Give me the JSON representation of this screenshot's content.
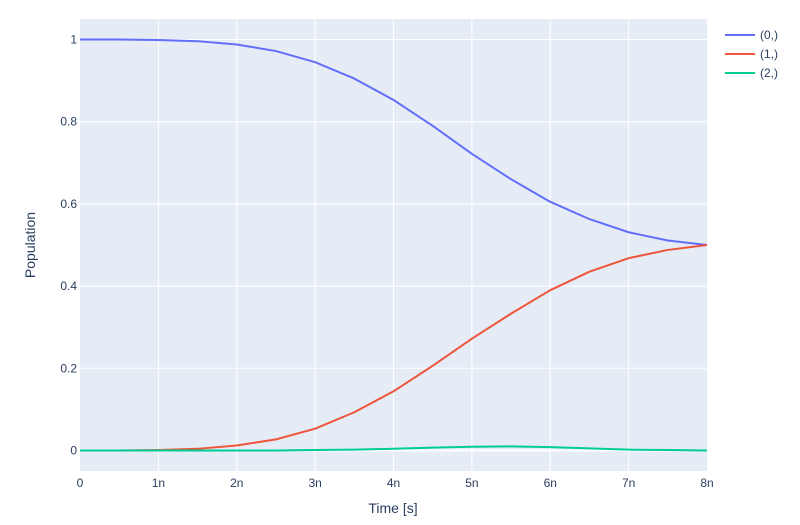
{
  "chart_data": {
    "type": "line",
    "xlabel": "Time [s]",
    "ylabel": "Population",
    "xlim": [
      0,
      8e-09
    ],
    "ylim": [
      -0.05,
      1.05
    ],
    "x_ticks": [
      0,
      1e-09,
      2e-09,
      3e-09,
      4e-09,
      5e-09,
      6e-09,
      7e-09,
      8e-09
    ],
    "x_tick_labels": [
      "0",
      "1n",
      "2n",
      "3n",
      "4n",
      "5n",
      "6n",
      "7n",
      "8n"
    ],
    "y_ticks": [
      0,
      0.2,
      0.4,
      0.6,
      0.8,
      1
    ],
    "y_tick_labels": [
      "0",
      "0.2",
      "0.4",
      "0.6",
      "0.8",
      "1"
    ],
    "grid": true,
    "legend_position": "top-right outside",
    "x": [
      0,
      5e-10,
      1e-09,
      1.5e-09,
      2e-09,
      2.5e-09,
      3e-09,
      3.5e-09,
      4e-09,
      4.5e-09,
      5e-09,
      5.5e-09,
      6e-09,
      6.5e-09,
      7e-09,
      7.5e-09,
      8e-09
    ],
    "series": [
      {
        "name": "(0,)",
        "color": "#636efa",
        "values": [
          1.0,
          1.0,
          0.999,
          0.996,
          0.988,
          0.972,
          0.945,
          0.905,
          0.853,
          0.79,
          0.722,
          0.66,
          0.605,
          0.563,
          0.531,
          0.511,
          0.5
        ]
      },
      {
        "name": "(1,)",
        "color": "#ef553b",
        "values": [
          0.0,
          0.0,
          0.001,
          0.004,
          0.012,
          0.027,
          0.053,
          0.093,
          0.144,
          0.206,
          0.272,
          0.333,
          0.39,
          0.435,
          0.468,
          0.488,
          0.5
        ]
      },
      {
        "name": "(2,)",
        "color": "#00cc96",
        "values": [
          0.0,
          0.0,
          0.0,
          0.0,
          0.0,
          0.0,
          0.001,
          0.002,
          0.004,
          0.007,
          0.009,
          0.01,
          0.008,
          0.005,
          0.002,
          0.001,
          0.0
        ]
      }
    ]
  }
}
